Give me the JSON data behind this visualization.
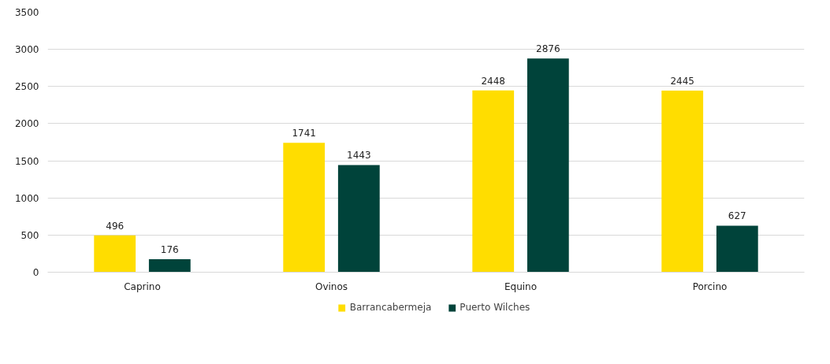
{
  "chart_data": {
    "type": "bar",
    "categories": [
      "Caprino",
      "Ovinos",
      "Equino",
      "Porcino"
    ],
    "series": [
      {
        "name": "Barrancabermeja",
        "color": "#ffdd00",
        "values": [
          496,
          1741,
          2448,
          2445
        ]
      },
      {
        "name": "Puerto Wilches",
        "color": "#00433a",
        "values": [
          176,
          1443,
          2876,
          627
        ]
      }
    ],
    "ylim": [
      0,
      3500
    ],
    "yticks": [
      0,
      500,
      1000,
      1500,
      2000,
      2500,
      3000,
      3500
    ],
    "grid": "y",
    "legend": "bottom",
    "data_labels": true
  }
}
